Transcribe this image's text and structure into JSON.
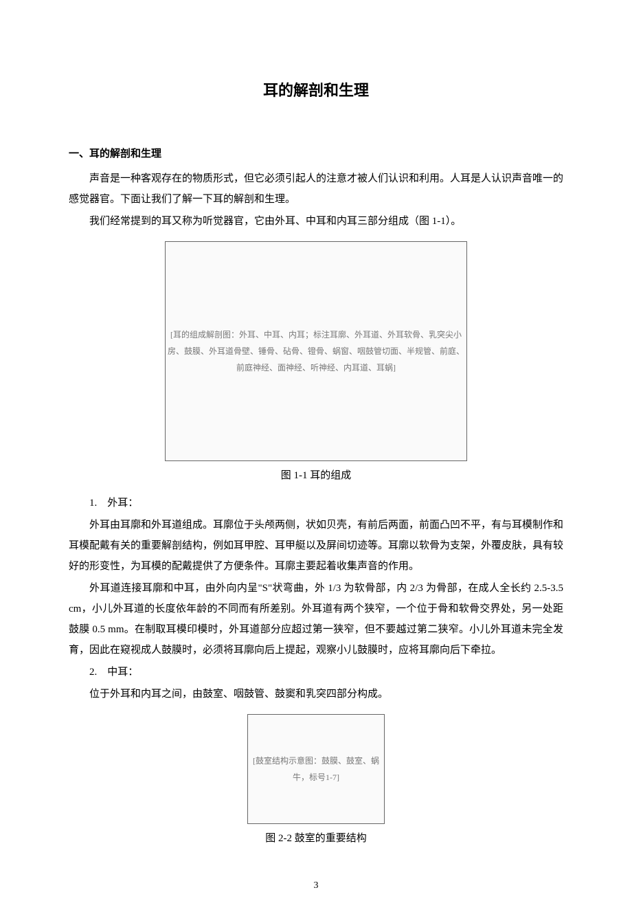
{
  "title": "耳的解剖和生理",
  "section1": {
    "heading": "一、耳的解剖和生理",
    "p1": "声音是一种客观存在的物质形式，但它必须引起人的注意才被人们认识和利用。人耳是人认识声音唯一的感觉器官。下面让我们了解一下耳的解剖和生理。",
    "p2": "我们经常提到的耳又称为听觉器官，它由外耳、中耳和内耳三部分组成（图 1-1）。"
  },
  "figure1": {
    "placeholder_text": "[耳的组成解剖图：外耳、中耳、内耳；标注耳廓、外耳道、外耳软骨、乳突尖小房、鼓膜、外耳道骨壁、锤骨、砧骨、镫骨、蜗窗、咽鼓管切面、半规管、前庭、前庭神经、面神经、听神经、内耳道、耳蜗]",
    "caption": "图 1-1  耳的组成"
  },
  "item1": {
    "label": "1.　外耳：",
    "p1": "外耳由耳廓和外耳道组成。耳廓位于头颅两侧，状如贝壳，有前后两面，前面凸凹不平，有与耳模制作和耳模配戴有关的重要解剖结构，例如耳甲腔、耳甲艇以及屏间切迹等。耳廓以软骨为支架，外覆皮肤，具有较好的形变性，为耳模的配戴提供了方便条件。耳廓主要起着收集声音的作用。",
    "p2": "外耳道连接耳廓和中耳，由外向内呈\"S\"状弯曲，外 1/3 为软骨部，内 2/3 为骨部，在成人全长约 2.5-3.5 cm，小儿外耳道的长度依年龄的不同而有所差别。外耳道有两个狭窄，一个位于骨和软骨交界处，另一处距鼓膜 0.5 mm。在制取耳模印模时，外耳道部分应超过第一狭窄，但不要越过第二狭窄。小儿外耳道未完全发育，因此在窥视成人鼓膜时，必须将耳廓向后上提起，观察小儿鼓膜时，应将耳廓向后下牵拉。"
  },
  "item2": {
    "label": "2.　中耳：",
    "p1": "位于外耳和内耳之间，由鼓室、咽鼓管、鼓窦和乳突四部分构成。"
  },
  "figure2": {
    "placeholder_text": "[鼓室结构示意图：鼓膜、鼓室、蜗牛，标号1-7]",
    "caption": "图 2-2  鼓室的重要结构"
  },
  "page_number": "3",
  "colors": {
    "text": "#000000",
    "background": "#ffffff"
  }
}
